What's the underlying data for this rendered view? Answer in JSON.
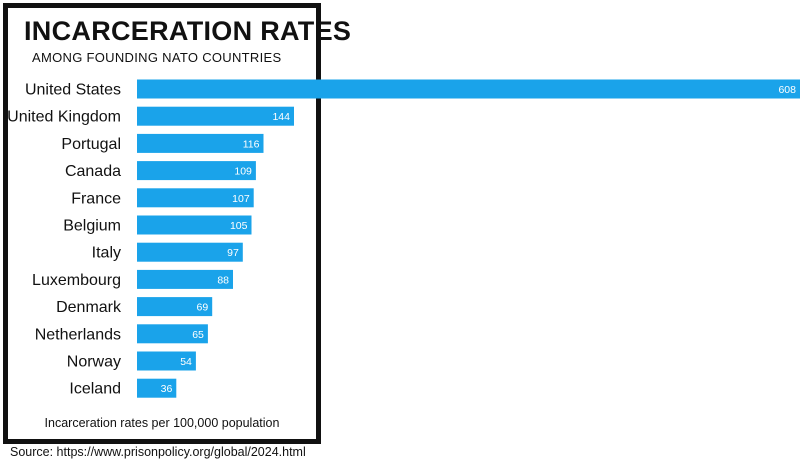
{
  "chart_data": {
    "type": "bar",
    "orientation": "horizontal",
    "title": "INCARCERATION RATES",
    "subtitle": "AMONG FOUNDING NATO COUNTRIES",
    "categories": [
      "United States",
      "United Kingdom",
      "Portugal",
      "Canada",
      "France",
      "Belgium",
      "Italy",
      "Luxembourg",
      "Denmark",
      "Netherlands",
      "Norway",
      "Iceland"
    ],
    "values": [
      608,
      144,
      116,
      109,
      107,
      105,
      97,
      88,
      69,
      65,
      54,
      36
    ],
    "value_labels": [
      "608",
      "144",
      "116",
      "109",
      "107",
      "105",
      "97",
      "88",
      "69",
      "65",
      "54",
      "36"
    ],
    "xlabel": "Incarceration rates per 100,000 population",
    "ylabel": "",
    "xlim": [
      0,
      608
    ],
    "grid": false,
    "bar_color": "#1aa3ea",
    "source": "Source: https://www.prisonpolicy.org/global/2024.html"
  }
}
